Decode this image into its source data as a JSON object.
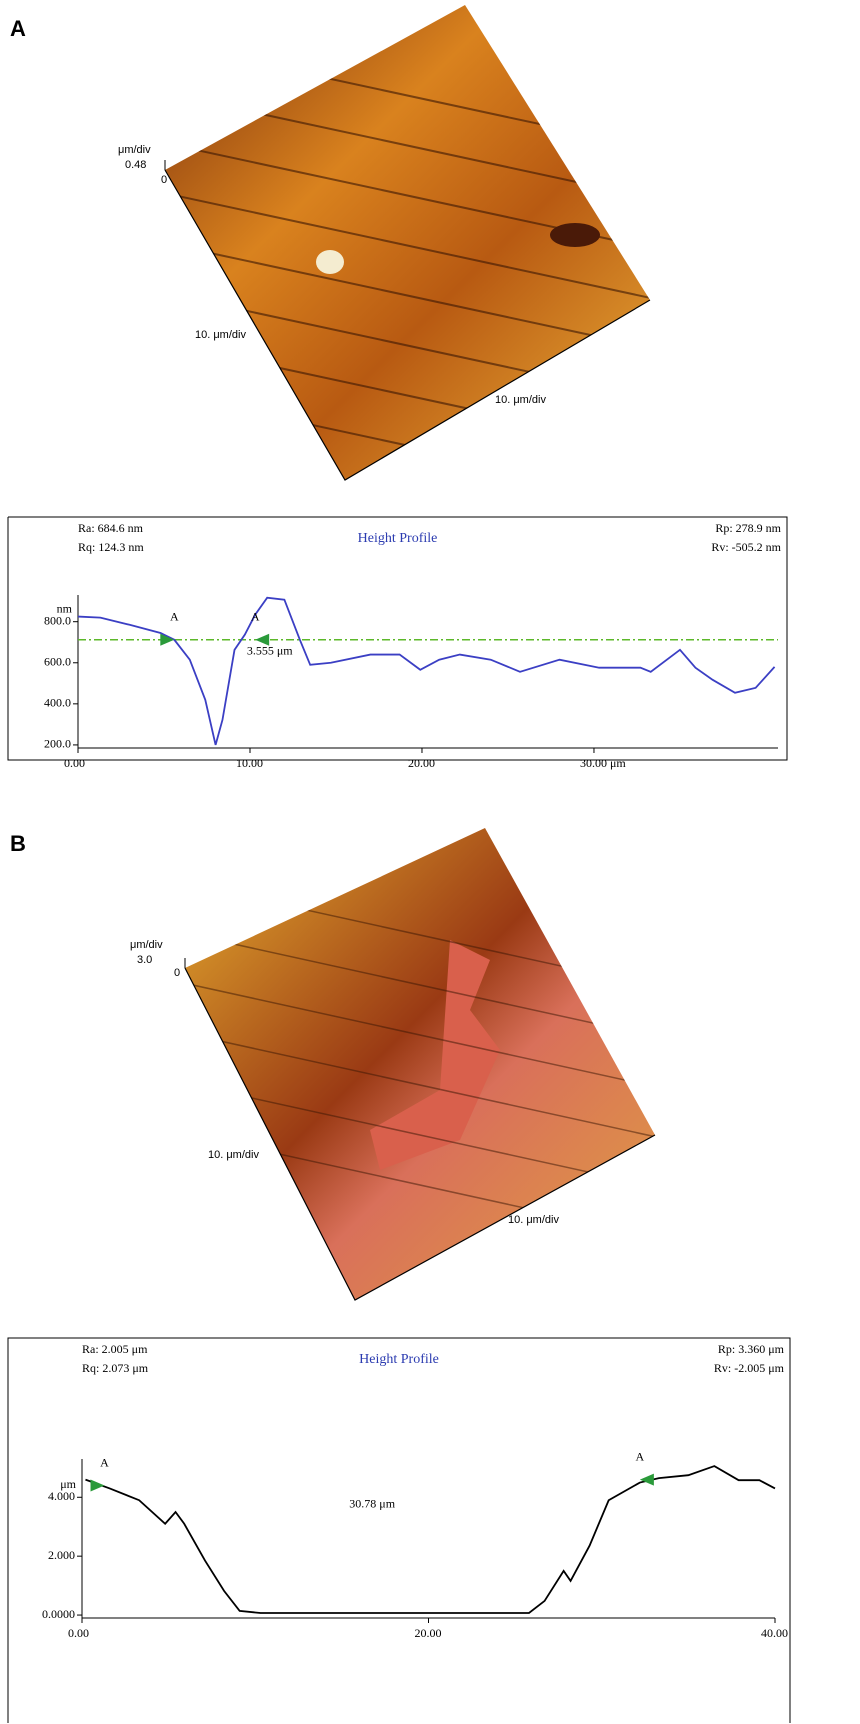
{
  "panels": [
    {
      "label": "A",
      "afm": {
        "z_unit": "μm/div",
        "z_max": "0.48",
        "z_min": "0",
        "x_scale": "10. μm/div",
        "y_scale": "10. μm/div"
      }
    },
    {
      "label": "B",
      "afm": {
        "z_unit": "μm/div",
        "z_max": "3.0",
        "z_min": "0",
        "x_scale": "10. μm/div",
        "y_scale": "10. μm/div"
      }
    }
  ],
  "chart_data": [
    {
      "type": "line",
      "title": "Height Profile",
      "annotations": {
        "ra": "Ra: 684.6 nm",
        "rq": "Rq: 124.3 nm",
        "rp": "Rp: 278.9 nm",
        "rv": "Rv: -505.2 nm"
      },
      "y_label": "nm",
      "x": [
        0,
        1.3,
        3,
        4.8,
        5.6,
        6.5,
        7.4,
        8,
        8.4,
        9.1,
        9.7,
        10.3,
        11,
        12,
        12.9,
        13.5,
        14.7,
        17,
        18.7,
        19.9,
        21,
        22.2,
        24,
        25.7,
        28,
        30.3,
        32.7,
        33.3,
        35,
        35.9,
        36.9,
        38.2,
        39.4,
        40.5
      ],
      "series": [
        {
          "color": "#3b3fc4",
          "values": [
            825,
            820,
            785,
            745,
            712,
            615,
            420,
            200,
            322,
            663,
            737,
            834,
            917,
            907,
            712,
            590,
            600,
            640,
            640,
            566,
            615,
            640,
            615,
            556,
            615,
            576,
            576,
            556,
            663,
            576,
            517,
            454,
            478,
            580
          ]
        }
      ],
      "mean_line": 712,
      "mean_color": "#5cb82a",
      "markers": [
        {
          "label": "A",
          "x": 5.6,
          "y": 712
        },
        {
          "label": "A",
          "x": 10.3,
          "y": 712
        }
      ],
      "measurement": "3.555 μm",
      "xlim": [
        0,
        40.7
      ],
      "ylim": [
        185,
        930
      ],
      "xticks": [
        {
          "value": 0,
          "label": "0.00"
        },
        {
          "value": 10,
          "label": "10.00"
        },
        {
          "value": 20,
          "label": "20.00"
        },
        {
          "value": 30,
          "label": "30.00 μm"
        }
      ],
      "yticks": [
        {
          "value": 200,
          "label": "200.0"
        },
        {
          "value": 400,
          "label": "400.0"
        },
        {
          "value": 600,
          "label": "600.0"
        },
        {
          "value": 800,
          "label": "800.0"
        }
      ]
    },
    {
      "type": "line",
      "title": "Height Profile",
      "annotations": {
        "ra": "Ra: 2.005 μm",
        "rq": "Rq: 2.073 μm",
        "rp": "Rp: 3.360 μm",
        "rv": "Rv: -2.005 μm"
      },
      "y_label": "μm",
      "x": [
        0.2,
        1.6,
        3.3,
        4.8,
        5.4,
        5.9,
        7.1,
        8.2,
        9.1,
        10.3,
        25.8,
        26.7,
        27.8,
        28.2,
        29.3,
        30.4,
        32.2,
        33.3,
        35,
        36.5,
        37.9,
        39.1,
        40
      ],
      "series": [
        {
          "color": "#000000",
          "values": [
            4.6,
            4.3,
            3.9,
            3.1,
            3.5,
            3.1,
            1.85,
            0.82,
            0.14,
            0.07,
            0.07,
            0.48,
            1.5,
            1.16,
            2.36,
            3.9,
            4.5,
            4.65,
            4.75,
            5.06,
            4.58,
            4.58,
            4.3
          ]
        }
      ],
      "markers": [
        {
          "label": "A",
          "x": 1.3,
          "y": 4.4
        },
        {
          "label": "A",
          "x": 32.2,
          "y": 4.6
        }
      ],
      "measurement": "30.78 μm",
      "xlim": [
        0,
        40
      ],
      "ylim": [
        -0.1,
        5.3
      ],
      "xticks": [
        {
          "value": 0,
          "label": "0.00"
        },
        {
          "value": 20,
          "label": "20.00"
        },
        {
          "value": 40,
          "label": "40.00"
        }
      ],
      "yticks": [
        {
          "value": 0,
          "label": "0.0000"
        },
        {
          "value": 2,
          "label": "2.000"
        },
        {
          "value": 4,
          "label": "4.000"
        }
      ]
    }
  ]
}
